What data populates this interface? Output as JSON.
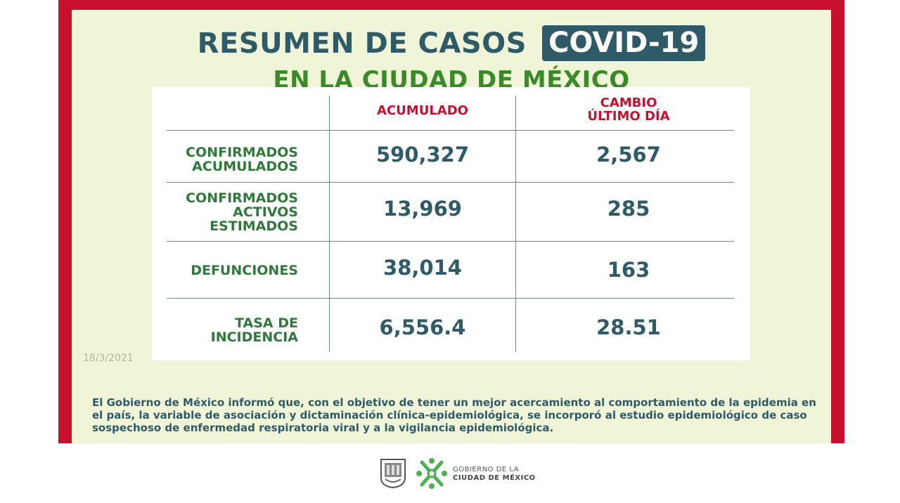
{
  "header": {
    "title": "RESUMEN DE CASOS",
    "badge": "COVID-19",
    "subtitle": "EN LA CIUDAD DE MÉXICO"
  },
  "table": {
    "columns": [
      "ACUMULADO",
      "CAMBIO",
      "ÚLTIMO DÍA"
    ],
    "rows": [
      {
        "label_lines": [
          "CONFIRMADOS",
          "ACUMULADOS",
          ""
        ],
        "acumulado": "590,327",
        "cambio": "2,567"
      },
      {
        "label_lines": [
          "CONFIRMADOS",
          "ACTIVOS",
          "ESTIMADOS"
        ],
        "acumulado": "13,969",
        "cambio": "285"
      },
      {
        "label_lines": [
          "DEFUNCIONES",
          "",
          ""
        ],
        "acumulado": "38,014",
        "cambio": "163"
      },
      {
        "label_lines": [
          "TASA DE",
          "INCIDENCIA",
          ""
        ],
        "acumulado": "6,556.4",
        "cambio": "28.51"
      }
    ]
  },
  "date": "18/3/2021",
  "note": "El Gobierno de México informó que, con el objetivo de tener un mejor acercamiento al comportamiento de la epidemia en el país, la variable de asociación y dictaminación clínica-epidemiológica, se incorporó al estudio epidemiológico de caso sospechoso de enfermedad respiratoria viral y a la vigilancia epidemiológica.",
  "footer": {
    "line1": "GOBIERNO DE LA",
    "line2": "CIUDAD DE MÉXICO"
  },
  "colors": {
    "frame_red": "#c8102e",
    "background": "#f0f5d8",
    "teal": "#2f5a68",
    "green": "#3a8a2a",
    "label_green": "#2f7a3a",
    "logo_green": "#4caf50"
  },
  "icons": [
    "coat-of-arms-icon",
    "cdmx-logo-icon"
  ]
}
